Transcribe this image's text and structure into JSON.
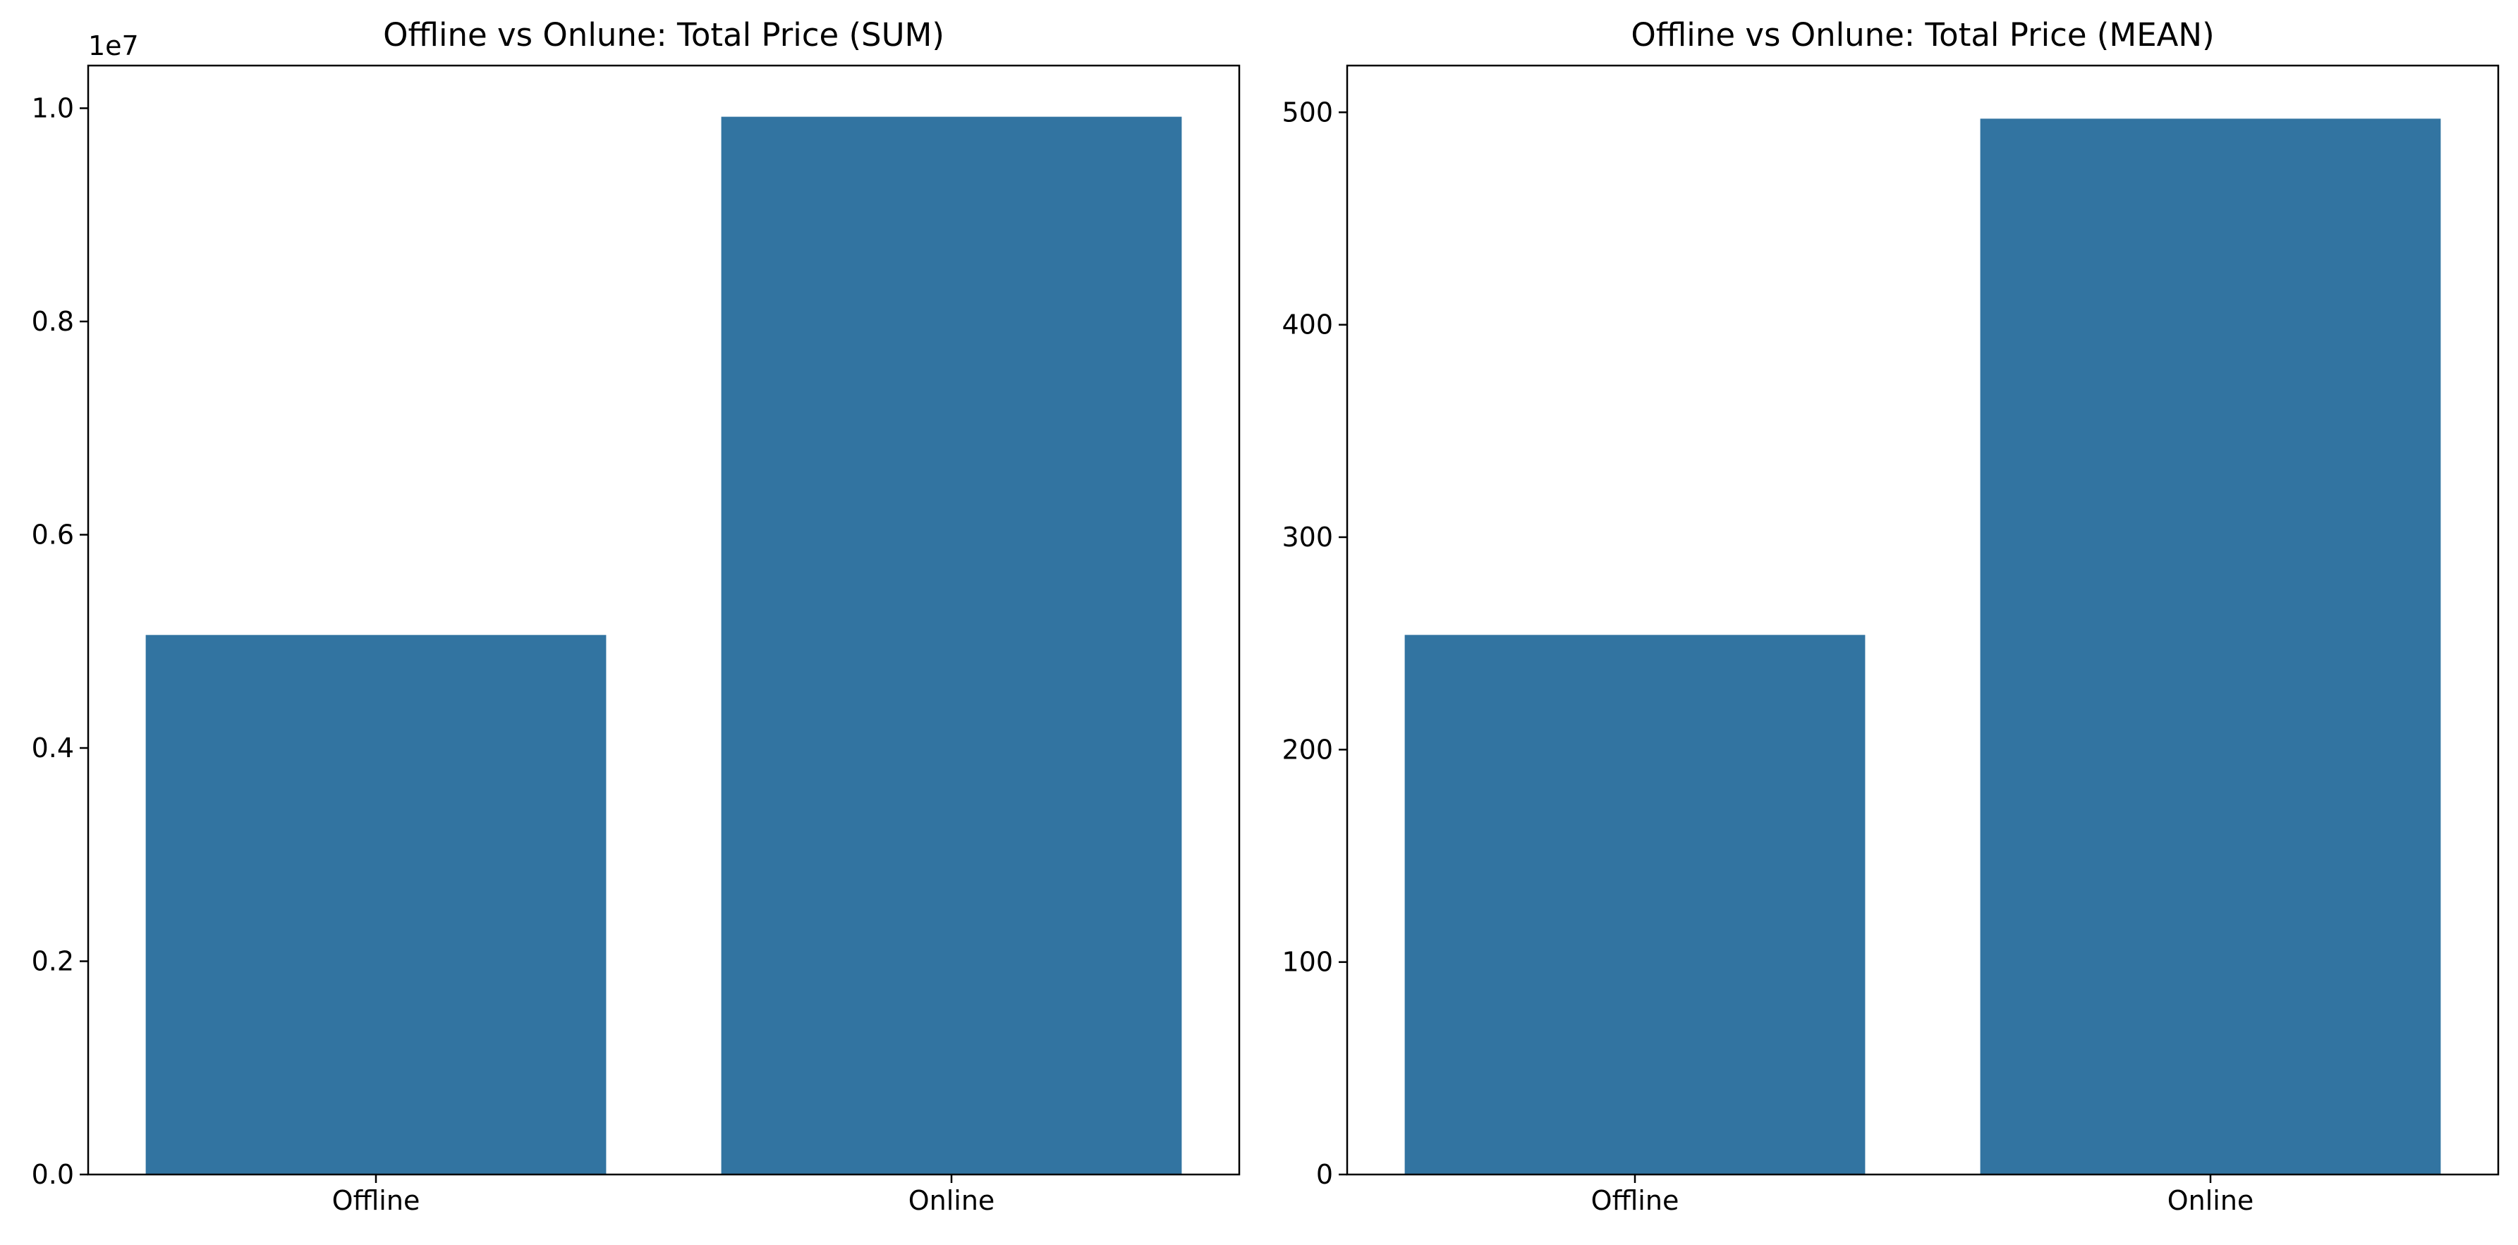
{
  "figure": {
    "background": "#ffffff"
  },
  "chart_data": [
    {
      "type": "bar",
      "title": "Offline vs Onlune: Total Price (SUM)",
      "xlabel": "",
      "ylabel": "",
      "categories": [
        "Offline",
        "Online"
      ],
      "values": [
        5060000,
        9920000
      ],
      "color": "#3274a1",
      "ylim": [
        0,
        10400000
      ],
      "yticks": [
        0,
        2000000,
        4000000,
        6000000,
        8000000,
        10000000
      ],
      "ytick_labels": [
        "0.0",
        "0.2",
        "0.4",
        "0.6",
        "0.8",
        "1.0"
      ],
      "y_offset_label": "1e7",
      "grid": false,
      "legend": "none"
    },
    {
      "type": "bar",
      "title": "Offline vs Onlune: Total Price (MEAN)",
      "xlabel": "",
      "ylabel": "",
      "categories": [
        "Offline",
        "Online"
      ],
      "values": [
        254,
        497
      ],
      "color": "#3274a1",
      "ylim": [
        0,
        522
      ],
      "yticks": [
        0,
        100,
        200,
        300,
        400,
        500
      ],
      "ytick_labels": [
        "0",
        "100",
        "200",
        "300",
        "400",
        "500"
      ],
      "y_offset_label": "",
      "grid": false,
      "legend": "none"
    }
  ]
}
